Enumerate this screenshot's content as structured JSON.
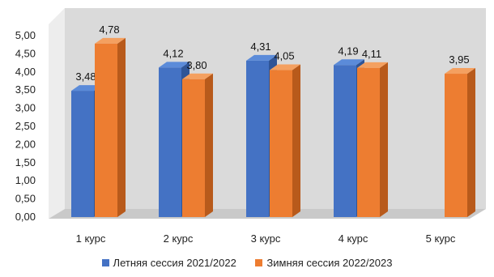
{
  "chart_data": {
    "type": "bar",
    "categories": [
      "1 курс",
      "2 курс",
      "3 курс",
      "4 курс",
      "5 курс"
    ],
    "series": [
      {
        "name": "Летняя сессия 2021/2022",
        "values": [
          3.48,
          4.12,
          4.31,
          4.19,
          null
        ],
        "labels": [
          "3,48",
          "4,12",
          "4,31",
          "4,19",
          ""
        ]
      },
      {
        "name": "Зимняя сессия 2022/2023",
        "values": [
          4.78,
          3.8,
          4.05,
          4.11,
          3.95
        ],
        "labels": [
          "4,78",
          "3,80",
          "4,05",
          "4,11",
          "3,95"
        ]
      }
    ],
    "yticks": [
      "0,00",
      "0,50",
      "1,00",
      "1,50",
      "2,00",
      "2,50",
      "3,00",
      "3,50",
      "4,00",
      "4,50",
      "5,00"
    ],
    "ylim": [
      0,
      5
    ],
    "grid": false,
    "legend_position": "bottom",
    "style": "3d",
    "colors": {
      "series1": "#4472C4",
      "series2": "#ED7D31",
      "wall": "#DADADA",
      "floor": "#C9C9C9"
    }
  }
}
